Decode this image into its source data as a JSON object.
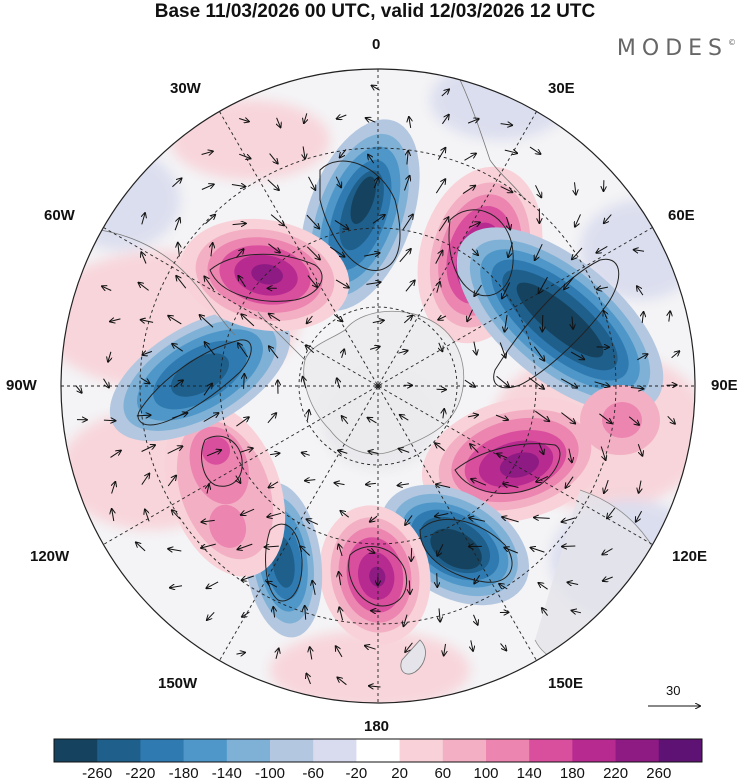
{
  "title": "Base 11/03/2026 00 UTC, valid 12/03/2026 12 UTC",
  "brand": "MODES",
  "brand_mark": "©",
  "longitude_labels": {
    "lon_0": "0",
    "lon_30e": "30E",
    "lon_60e": "60E",
    "lon_90e": "90E",
    "lon_120e": "120E",
    "lon_150e": "150E",
    "lon_180": "180",
    "lon_150w": "150W",
    "lon_120w": "120W",
    "lon_90w": "90W",
    "lon_60w": "60W",
    "lon_30w": "30W"
  },
  "vector_reference": {
    "label": "30"
  },
  "colorbar": {
    "ticks": [
      "-260",
      "-220",
      "-180",
      "-140",
      "-100",
      "-60",
      "-20",
      "20",
      "60",
      "100",
      "140",
      "180",
      "220",
      "260"
    ],
    "colors": [
      "#15425f",
      "#1f5f8b",
      "#2f7bb1",
      "#4f97c8",
      "#7fb1d6",
      "#b3c7e0",
      "#d9dcee",
      "#ffffff",
      "#f8d2d8",
      "#f3b0c4",
      "#ec85b0",
      "#d94f9e",
      "#b72a8f",
      "#8d1b83",
      "#5e1273"
    ]
  },
  "map": {
    "projection": "south polar stereographic",
    "anomalies": [
      {
        "name": "blue-pacific-sector-north",
        "value": -220
      },
      {
        "name": "magenta-atlantic-60e",
        "value": 220
      },
      {
        "name": "blue-indian-ocean",
        "value": -240
      },
      {
        "name": "magenta-east-antarctica",
        "value": 200
      },
      {
        "name": "blue-pacific-120e",
        "value": -250
      },
      {
        "name": "magenta-ross-sea",
        "value": 220
      },
      {
        "name": "blue-150w",
        "value": -180
      },
      {
        "name": "pink-120w",
        "value": 160
      },
      {
        "name": "blue-90w",
        "value": -200
      },
      {
        "name": "magenta-60w",
        "value": 240
      }
    ]
  }
}
